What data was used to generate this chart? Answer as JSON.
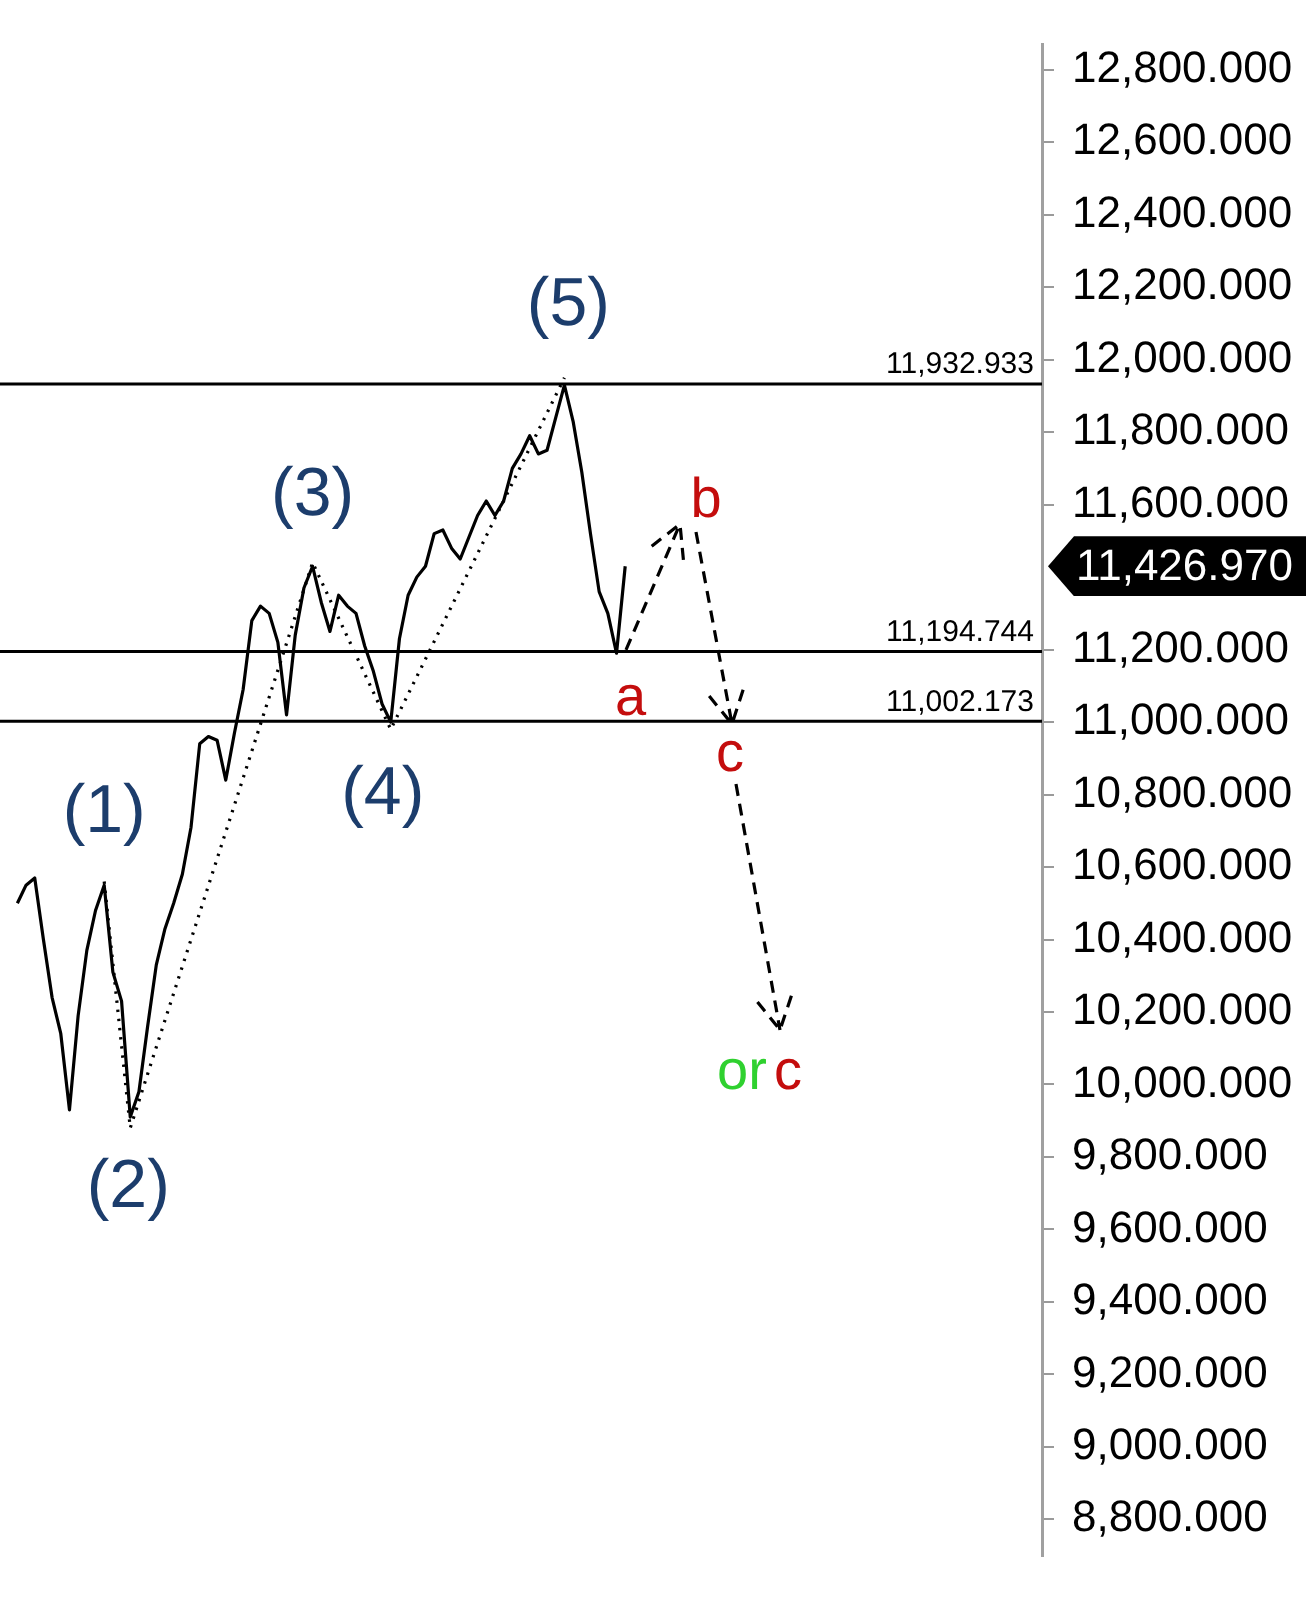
{
  "chart_data": {
    "type": "line",
    "categories": [
      null,
      null,
      null,
      null,
      null,
      null,
      null,
      null,
      null,
      null,
      null,
      null,
      null,
      null,
      null,
      null,
      null,
      null,
      null,
      null,
      null,
      null,
      null,
      null,
      null,
      null,
      null,
      null,
      null,
      null,
      null,
      null,
      null,
      null,
      null,
      null,
      null,
      null,
      null,
      null,
      null,
      null,
      null,
      null,
      null,
      null,
      null,
      null,
      null,
      null,
      null,
      null,
      null,
      null,
      null,
      null,
      null,
      null,
      null,
      null,
      null,
      null,
      null,
      null,
      null,
      null,
      null,
      null,
      null,
      null,
      null,
      null,
      null,
      null,
      null,
      null,
      null,
      null,
      null,
      null,
      null,
      null,
      null,
      null,
      null,
      null,
      null,
      null,
      null,
      null,
      null,
      null,
      null,
      null,
      null,
      null,
      null,
      null,
      null,
      null,
      null,
      null,
      null,
      null,
      null,
      null,
      null,
      null,
      null,
      null,
      null,
      null,
      null,
      null,
      null,
      null,
      null,
      null,
      null,
      null,
      null
    ],
    "series": [
      {
        "color": "#000000",
        "line_style": "solid",
        "values": [
          null,
          null,
          10500,
          10550,
          10570,
          10400,
          10240,
          10140,
          9930,
          10190,
          10370,
          10480,
          10550,
          10310,
          10230,
          9910,
          9980,
          10160,
          10330,
          10430,
          10500,
          10580,
          10710,
          10940,
          10960,
          10950,
          10840,
          10970,
          11090,
          11280,
          11320,
          11300,
          11220,
          11020,
          11240,
          11370,
          11430,
          11330,
          11250,
          11350,
          11320,
          11300,
          11210,
          11140,
          11050,
          11000,
          11230,
          11350,
          11400,
          11430,
          11520,
          11530,
          11480,
          11450,
          11510,
          11570,
          11610,
          11570,
          11610,
          11700,
          11740,
          11790,
          11740,
          11750,
          11840,
          11930,
          11830,
          11690,
          11520,
          11360,
          11300,
          11190,
          11430,
          null,
          null,
          null,
          null,
          null,
          null,
          null,
          null,
          null,
          null,
          null,
          null,
          null,
          null,
          null,
          null,
          null,
          null,
          null,
          null,
          null,
          null,
          null,
          null,
          null,
          null,
          null,
          null,
          null,
          null,
          null,
          null,
          null,
          null,
          null,
          null,
          null,
          null,
          null,
          null,
          null,
          null,
          null,
          null,
          null,
          null,
          null,
          null
        ]
      },
      {
        "color": "#000000",
        "line_style": "dotted",
        "values": [
          null,
          null,
          null,
          null,
          null,
          null,
          null,
          null,
          null,
          null,
          null,
          null,
          10560,
          null,
          null,
          9880,
          null,
          null,
          null,
          null,
          null,
          null,
          null,
          null,
          null,
          null,
          null,
          null,
          null,
          null,
          null,
          null,
          null,
          null,
          null,
          null,
          11440,
          null,
          null,
          null,
          null,
          null,
          null,
          null,
          null,
          10980,
          null,
          null,
          null,
          null,
          null,
          null,
          null,
          null,
          null,
          null,
          null,
          null,
          null,
          null,
          null,
          null,
          null,
          null,
          null,
          11950,
          null,
          null,
          null,
          null,
          null,
          null,
          null,
          null,
          null,
          null,
          null,
          null,
          null,
          null,
          null,
          null,
          null,
          null,
          null,
          null,
          null,
          null,
          null,
          null,
          null,
          null,
          null,
          null,
          null,
          null,
          null,
          null,
          null,
          null,
          null,
          null,
          null,
          null,
          null,
          null,
          null,
          null,
          null,
          null,
          null,
          null,
          null,
          null,
          null,
          null,
          null,
          null,
          null,
          null,
          null
        ]
      }
    ],
    "ylim": [
      8700,
      12870
    ],
    "yticks": [
      {
        "value": 8800,
        "label": "8,800.000"
      },
      {
        "value": 9000,
        "label": "9,000.000"
      },
      {
        "value": 9200,
        "label": "9,200.000"
      },
      {
        "value": 9400,
        "label": "9,400.000"
      },
      {
        "value": 9600,
        "label": "9,600.000"
      },
      {
        "value": 9800,
        "label": "9,800.000"
      },
      {
        "value": 10000,
        "label": "10,000.000"
      },
      {
        "value": 10200,
        "label": "10,200.000"
      },
      {
        "value": 10400,
        "label": "10,400.000"
      },
      {
        "value": 10600,
        "label": "10,600.000"
      },
      {
        "value": 10800,
        "label": "10,800.000"
      },
      {
        "value": 11000,
        "label": "11,000.000"
      },
      {
        "value": 11200,
        "label": "11,200.000"
      },
      {
        "value": 11600,
        "label": "11,600.000"
      },
      {
        "value": 11800,
        "label": "11,800.000"
      },
      {
        "value": 12000,
        "label": "12,000.000"
      },
      {
        "value": 12200,
        "label": "12,200.000"
      },
      {
        "value": 12400,
        "label": "12,400.000"
      },
      {
        "value": 12600,
        "label": "12,600.000"
      },
      {
        "value": 12800,
        "label": "12,800.000"
      }
    ],
    "tick_labels": "y",
    "grid": false,
    "marker": "none",
    "ref_lines": [
      {
        "axis": "y",
        "value": 11932.933,
        "label": "11,932.933"
      },
      {
        "axis": "y",
        "value": 11194.744,
        "label": "11,194.744"
      },
      {
        "axis": "y",
        "value": 11002.173,
        "label": "11,002.173"
      }
    ],
    "annotations": [
      {
        "text": "(1)",
        "y": 10560
      },
      {
        "text": "(2)",
        "y": 9880
      },
      {
        "text": "(3)",
        "y": 11440
      },
      {
        "text": "(4)",
        "y": 10980
      },
      {
        "text": "(5)",
        "y": 11950
      },
      {
        "text": "a",
        "y": 11190
      },
      "b",
      "c",
      "or",
      "c",
      "11,426.970"
    ]
  }
}
